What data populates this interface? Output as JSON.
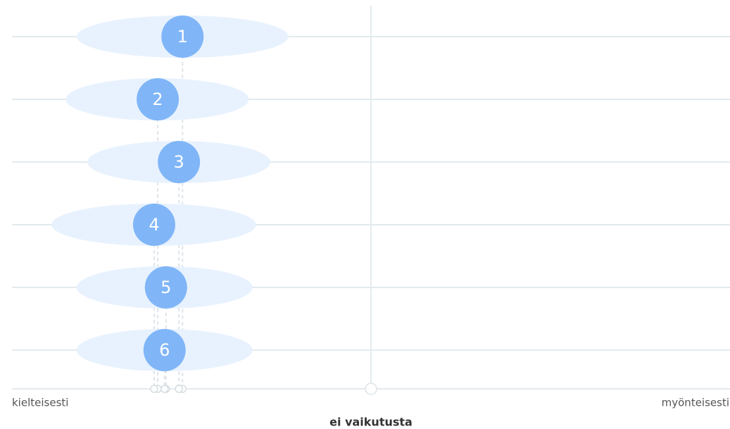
{
  "chart_data": {
    "type": "dot",
    "categories": [
      "1",
      "2",
      "3",
      "4",
      "5",
      "6"
    ],
    "values": [
      -0.525,
      -0.594,
      -0.535,
      -0.604,
      -0.571,
      -0.575
    ],
    "low": [
      -0.82,
      -0.85,
      -0.79,
      -0.89,
      -0.82,
      -0.82
    ],
    "high": [
      -0.23,
      -0.34,
      -0.28,
      -0.32,
      -0.33,
      -0.33
    ],
    "color": "#80b6f8",
    "interval_color": "#e8f2fe",
    "xlim": [
      -1,
      1
    ],
    "xticks": [
      {
        "value": -1,
        "label": "kielteisesti"
      },
      {
        "value": 0,
        "label": "ei vaikutusta"
      },
      {
        "value": 1,
        "label": "myönteisesti"
      }
    ],
    "grid": true
  }
}
